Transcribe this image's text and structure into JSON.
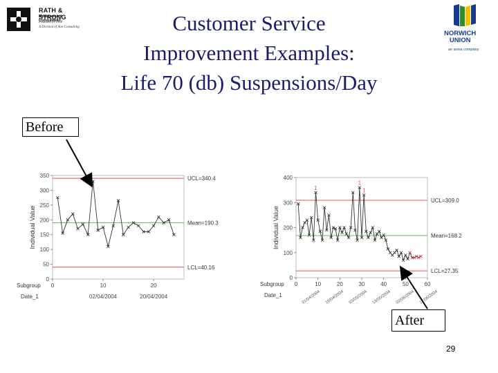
{
  "logos": {
    "left": {
      "name": "RATH & STRONG",
      "subtitle": "Management Consultants",
      "line1": "Founded in 1938",
      "line2": "A Division of Aon Consulting"
    },
    "right": {
      "name_line1": "NORWICH",
      "name_line2": "UNION",
      "tagline": "an aviva company",
      "colors": {
        "navy": "#1a3b8c",
        "green": "#2f8f2f",
        "yellow": "#f2c200"
      }
    }
  },
  "title": {
    "line1": "Customer Service",
    "line2": "Improvement Examples:",
    "line3": "Life 70 (db) Suspensions/Day"
  },
  "callouts": {
    "before": "Before",
    "after": "After"
  },
  "page_number": "29",
  "colors": {
    "ucl": "#e05050",
    "lcl": "#e05050",
    "mean": "#60c060",
    "series": "#333333",
    "after_shift": "#d03030"
  },
  "chart_data": [
    {
      "type": "line",
      "title": "",
      "ylabel": "Individual Value",
      "xlabel": "Subgroup",
      "x_row_label": "Subgroup",
      "date_row_label": "Date_1",
      "date_labels": [
        "02/04/2004",
        "20/04/2004"
      ],
      "xlim": [
        0,
        26
      ],
      "ylim": [
        0,
        350
      ],
      "y_ticks": [
        0,
        50,
        100,
        150,
        200,
        250,
        300,
        350
      ],
      "x_ticks": [
        0,
        10,
        20
      ],
      "control_lines": {
        "ucl": 340.4,
        "mean": 190.3,
        "lcl": 40.16
      },
      "control_labels": {
        "ucl": "UCL=340.4",
        "mean": "Mean=190.3",
        "lcl": "LCL=40.16"
      },
      "x": [
        1,
        2,
        3,
        4,
        5,
        6,
        7,
        8,
        9,
        10,
        11,
        12,
        13,
        14,
        15,
        16,
        17,
        18,
        19,
        20,
        21,
        22,
        23,
        24
      ],
      "values": [
        275,
        155,
        200,
        220,
        170,
        185,
        150,
        330,
        165,
        175,
        110,
        180,
        265,
        150,
        175,
        190,
        180,
        160,
        160,
        180,
        210,
        190,
        200,
        150
      ]
    },
    {
      "type": "line",
      "title": "",
      "ylabel": "Individual Value",
      "xlabel": "Subgroup",
      "x_row_label": "Subgroup",
      "date_row_label": "Date_1",
      "date_labels": [
        "01/04/2004",
        "16/04/2004",
        "03/05/2004",
        "18/05/2004",
        "02/06/2004",
        "17/06/2004"
      ],
      "xlim": [
        0,
        60
      ],
      "ylim": [
        0,
        400
      ],
      "y_ticks": [
        0,
        100,
        200,
        300,
        400
      ],
      "x_ticks": [
        0,
        10,
        20,
        30,
        40,
        50,
        60
      ],
      "control_lines": {
        "ucl": 309.0,
        "mean": 168.2,
        "lcl": 27.35
      },
      "control_labels": {
        "ucl": "UCL=309.0",
        "mean": "Mean=168.2",
        "lcl": "LCL=27.35"
      },
      "out_of_control_marker": "1",
      "x": [
        1,
        2,
        3,
        4,
        5,
        6,
        7,
        8,
        9,
        10,
        11,
        12,
        13,
        14,
        15,
        16,
        17,
        18,
        19,
        20,
        21,
        22,
        23,
        24,
        25,
        26,
        27,
        28,
        29,
        30,
        31,
        32,
        33,
        34,
        35,
        36,
        37,
        38,
        39,
        40,
        41,
        42,
        43,
        44,
        45,
        46,
        47,
        48,
        49,
        50,
        51,
        52,
        53,
        54,
        55,
        56,
        57
      ],
      "values": [
        295,
        160,
        200,
        220,
        230,
        170,
        240,
        150,
        340,
        230,
        185,
        150,
        280,
        190,
        250,
        160,
        200,
        195,
        150,
        200,
        180,
        200,
        175,
        160,
        200,
        340,
        190,
        150,
        360,
        160,
        330,
        185,
        160,
        180,
        200,
        150,
        175,
        185,
        160,
        170,
        150,
        115,
        100,
        90,
        100,
        110,
        85,
        100,
        70,
        90,
        75,
        100,
        80,
        80,
        85,
        80,
        85
      ],
      "out_of_control_x": [
        9,
        29,
        31
      ]
    }
  ]
}
